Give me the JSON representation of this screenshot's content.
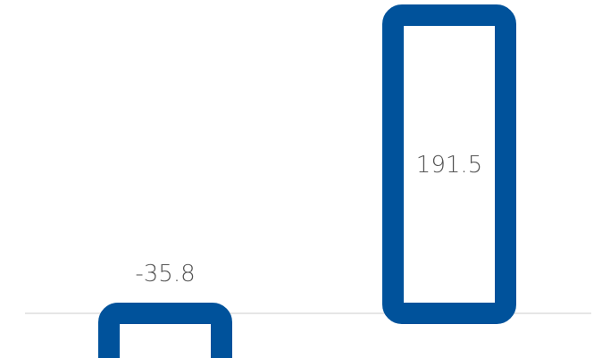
{
  "chart_data": {
    "type": "bar",
    "categories": [
      "",
      ""
    ],
    "values": [
      -35.8,
      191.5
    ],
    "data_labels": [
      "-35.8",
      "191.5"
    ],
    "title": "",
    "xlabel": "",
    "ylabel": "",
    "ylim": [
      -40,
      200
    ],
    "grid": false,
    "legend": "none",
    "colors": {
      "bar_stroke": "#00529B",
      "bar_fill": "#FFFFFF",
      "baseline": "#CCCCCC",
      "label": "#555555"
    }
  }
}
